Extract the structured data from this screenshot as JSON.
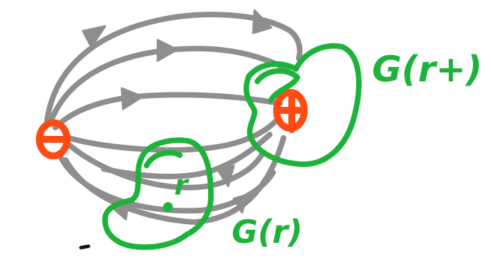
{
  "diagram": {
    "charges": {
      "negative": {
        "symbol": "⊖"
      },
      "positive": {
        "symbol": "⊕"
      }
    },
    "point_label": "r",
    "region_labels": {
      "near_positive": "G(r+)",
      "near_point": "G(r)"
    },
    "colors": {
      "field_lines": "#8e8e8e",
      "charges": "#ff4a12",
      "regions": "#1db33a",
      "background": "#ffffff",
      "stray_mark": "#111111"
    },
    "field_line_count": 8
  }
}
